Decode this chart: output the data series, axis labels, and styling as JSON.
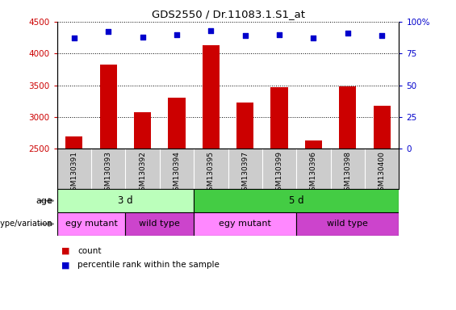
{
  "title": "GDS2550 / Dr.11083.1.S1_at",
  "samples": [
    "GSM130391",
    "GSM130393",
    "GSM130392",
    "GSM130394",
    "GSM130395",
    "GSM130397",
    "GSM130399",
    "GSM130396",
    "GSM130398",
    "GSM130400"
  ],
  "counts": [
    2700,
    3820,
    3070,
    3310,
    4130,
    3230,
    3470,
    2630,
    3480,
    3180
  ],
  "percentiles": [
    87,
    92,
    88,
    90,
    93,
    89,
    90,
    87,
    91,
    89
  ],
  "ylim_left": [
    2500,
    4500
  ],
  "ylim_right": [
    0,
    100
  ],
  "yticks_left": [
    2500,
    3000,
    3500,
    4000,
    4500
  ],
  "yticks_right": [
    0,
    25,
    50,
    75,
    100
  ],
  "bar_color": "#cc0000",
  "dot_color": "#0000cc",
  "age_groups": [
    {
      "label": "3 d",
      "start": 0,
      "end": 4,
      "color": "#bbffbb"
    },
    {
      "label": "5 d",
      "start": 4,
      "end": 10,
      "color": "#44cc44"
    }
  ],
  "genotype_groups": [
    {
      "label": "egy mutant",
      "start": 0,
      "end": 2,
      "color": "#ff88ff"
    },
    {
      "label": "wild type",
      "start": 2,
      "end": 4,
      "color": "#cc44cc"
    },
    {
      "label": "egy mutant",
      "start": 4,
      "end": 7,
      "color": "#ff88ff"
    },
    {
      "label": "wild type",
      "start": 7,
      "end": 10,
      "color": "#cc44cc"
    }
  ],
  "legend_count_color": "#cc0000",
  "legend_dot_color": "#0000cc",
  "label_age": "age",
  "label_genotype": "genotype/variation",
  "legend_count": "count",
  "legend_percentile": "percentile rank within the sample",
  "xtick_bg": "#cccccc"
}
